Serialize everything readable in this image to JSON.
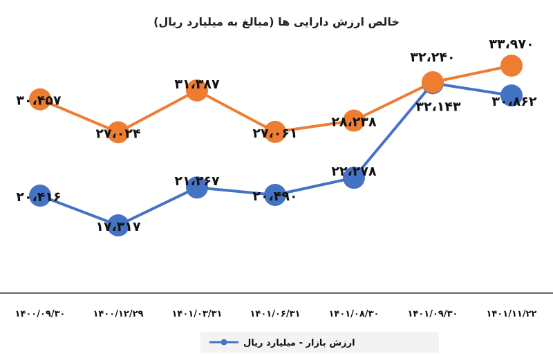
{
  "chart_data": {
    "type": "line",
    "title": "خالص ارزش دارایی ها (مبالغ به میلیارد ریال)",
    "categories": [
      "۱۴۰۰/۰۹/۳۰",
      "۱۴۰۰/۱۲/۲۹",
      "۱۴۰۱/۰۳/۳۱",
      "۱۴۰۱/۰۶/۳۱",
      "۱۴۰۱/۰۸/۳۰",
      "۱۴۰۱/۰۹/۳۰",
      "۱۴۰۱/۱۱/۲۲"
    ],
    "series": [
      {
        "name": "",
        "color": "#ED7D31",
        "values": [
          30457,
          27024,
          31387,
          27061,
          28238,
          32240,
          33970
        ],
        "labels": [
          "۳۰،۴۵۷",
          "۲۷،۰۲۴",
          "۳۱،۳۸۷",
          "۲۷،۰۶۱",
          "۲۸،۲۳۸",
          "۳۲،۲۴۰",
          "۳۳،۹۷۰"
        ]
      },
      {
        "name": "ارزش بازار - میلیارد ریال",
        "color": "#4472C4",
        "values": [
          20416,
          17317,
          21267,
          20490,
          22278,
          32143,
          30862
        ],
        "labels": [
          "۲۰،۴۱۶",
          "۱۷،۳۱۷",
          "۲۱،۲۶۷",
          "۲۰،۴۹۰",
          "۲۲،۲۷۸",
          "۳۲،۱۴۳",
          "۳۰،۸۶۲"
        ]
      }
    ],
    "ylim": [
      3000,
      37000
    ],
    "legend": "bottom",
    "grid": false
  }
}
